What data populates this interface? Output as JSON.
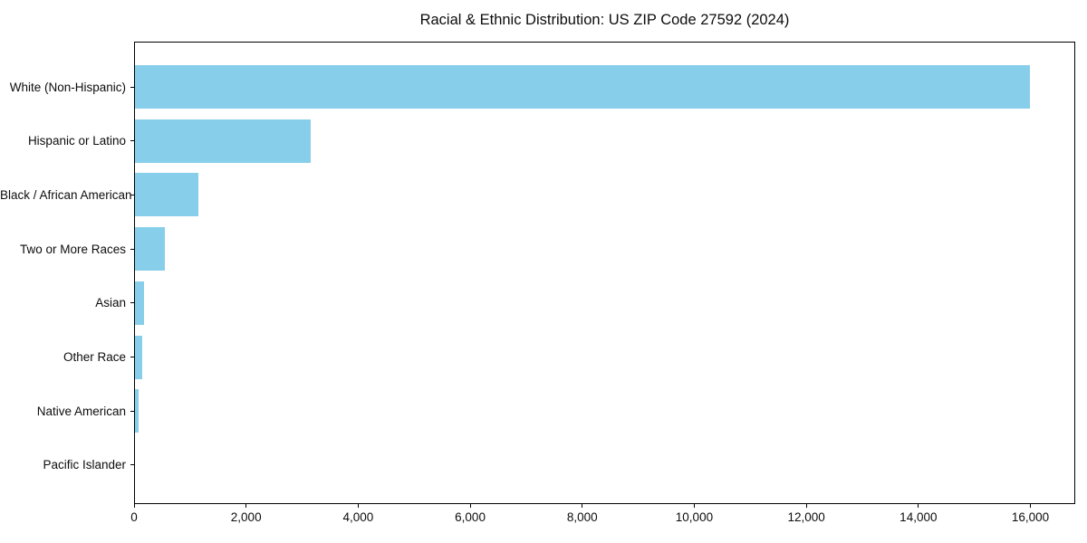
{
  "title": "Racial & Ethnic Distribution: US ZIP Code 27592 (2024)",
  "chart_data": {
    "type": "bar",
    "orientation": "horizontal",
    "title": "Racial & Ethnic Distribution: US ZIP Code 27592 (2024)",
    "xlabel": "",
    "ylabel": "",
    "categories": [
      "White (Non-Hispanic)",
      "Hispanic or Latino",
      "Black / African American",
      "Two or More Races",
      "Asian",
      "Other Race",
      "Native American",
      "Pacific Islander"
    ],
    "values": [
      16000,
      3150,
      1130,
      530,
      165,
      130,
      70,
      0
    ],
    "category_order": "top-to-bottom",
    "xlim": [
      0,
      16800
    ],
    "x_ticks": [
      0,
      2000,
      4000,
      6000,
      8000,
      10000,
      12000,
      14000,
      16000
    ],
    "x_tick_labels": [
      "0",
      "2,000",
      "4,000",
      "6,000",
      "8,000",
      "10,000",
      "12,000",
      "14,000",
      "16,000"
    ],
    "grid": false,
    "legend": null,
    "bar_color": "#87ceeb",
    "spine_color": "#000000",
    "background_color": "#ffffff"
  }
}
